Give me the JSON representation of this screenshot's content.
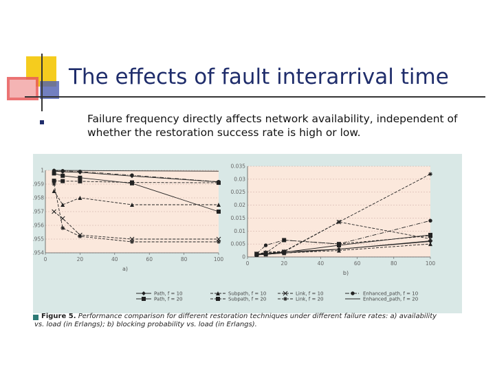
{
  "slide": {
    "title": "The effects of fault interarrival time",
    "bullet": "Failure frequency directly affects network availability, independent of whether the restoration success rate is high or low.",
    "caption_head": "Figure 5.",
    "caption_body": "Performance comparison for different restoration techniques under different failure rates: a) availability vs. load (in Erlangs); b) blocking probability vs. load (in Erlangs)."
  },
  "colors": {
    "title": "#1f2d6b",
    "deco_yellow": "#f5cc1e",
    "deco_red": "#e85a5a",
    "deco_blue": "#4f5fb0",
    "figure_bg": "#d9e8e6",
    "plot_bg": "#fbe8dc"
  },
  "legend": [
    {
      "label": "Path, f = 10",
      "marker": "diamond",
      "dash": "solid"
    },
    {
      "label": "Path, f = 20",
      "marker": "square",
      "dash": "solid"
    },
    {
      "label": "Subpath, f = 10",
      "marker": "triangle",
      "dash": "dashed"
    },
    {
      "label": "Subpath, f = 20",
      "marker": "square",
      "dash": "dashed"
    },
    {
      "label": "Link, f = 10",
      "marker": "x",
      "dash": "dashed"
    },
    {
      "label": "Link, f = 20",
      "marker": "star",
      "dash": "dashed"
    },
    {
      "label": "Enhanced_path, f = 10",
      "marker": "circle",
      "dash": "dashdot"
    },
    {
      "label": "Enhanced_path, f = 20",
      "marker": "none",
      "dash": "solid"
    }
  ],
  "chart_data": [
    {
      "type": "line",
      "label": "a)",
      "x_ticks": [
        0,
        20,
        40,
        60,
        80,
        100
      ],
      "y_ticks": [
        "0.954",
        "0.955",
        "0.956",
        "0.957",
        "0.958",
        "0.959",
        "1"
      ],
      "xlim": [
        0,
        100
      ],
      "ylim": [
        0.954,
        1
      ],
      "series": [
        {
          "name": "Path, f = 10",
          "marker": "diamond",
          "dash": "solid",
          "x": [
            5,
            10,
            20,
            50,
            100
          ],
          "y": [
            0.998,
            0.996,
            0.994,
            0.983,
            0.9655
          ]
        },
        {
          "name": "Path, f = 20",
          "marker": "square",
          "dash": "solid",
          "x": [
            5,
            10,
            20,
            50,
            100
          ],
          "y": [
            0.991,
            0.984,
            0.978,
            0.9615,
            0.957
          ]
        },
        {
          "name": "Subpath, f = 10",
          "marker": "triangle",
          "dash": "dashed",
          "x": [
            5,
            10,
            20,
            50,
            100
          ],
          "y": [
            0.9585,
            0.9575,
            0.958,
            0.9575,
            0.9575
          ]
        },
        {
          "name": "Subpath, f = 20",
          "marker": "square",
          "dash": "dashed",
          "x": [
            5,
            10,
            20,
            50,
            100
          ],
          "y": [
            0.969,
            0.968,
            0.9675,
            0.964,
            0.963
          ]
        },
        {
          "name": "Link, f = 10",
          "marker": "x",
          "dash": "dashed",
          "x": [
            5,
            10,
            20,
            50,
            100
          ],
          "y": [
            0.957,
            0.9565,
            0.9553,
            0.955,
            0.955
          ]
        },
        {
          "name": "Link, f = 20",
          "marker": "star",
          "dash": "dashed",
          "x": [
            5,
            10,
            20,
            50,
            100
          ],
          "y": [
            0.9595,
            0.9558,
            0.9552,
            0.9548,
            0.9548
          ]
        },
        {
          "name": "Enhanced_path, f = 10",
          "marker": "circle",
          "dash": "dashdot",
          "x": [
            5,
            10,
            20,
            50,
            100
          ],
          "y": [
            0.9995,
            0.9985,
            0.9965,
            0.9855,
            0.966
          ]
        },
        {
          "name": "Enhanced_path, f = 20",
          "marker": "none",
          "dash": "solid",
          "x": [
            5,
            10,
            20,
            50,
            100
          ],
          "y": [
            1.0,
            0.9997,
            0.9995,
            0.9985,
            0.9975
          ]
        }
      ]
    },
    {
      "type": "line",
      "label": "b)",
      "x_ticks": [
        0,
        20,
        40,
        60,
        80,
        100
      ],
      "y_ticks": [
        "0",
        "0.005",
        "0.01",
        "0.015",
        "0.02",
        "0.025",
        "0.03",
        "0.035"
      ],
      "xlim": [
        0,
        100
      ],
      "ylim": [
        0,
        0.035
      ],
      "series": [
        {
          "name": "Path, f = 10",
          "marker": "diamond",
          "dash": "solid",
          "x": [
            5,
            10,
            20,
            50,
            100
          ],
          "y": [
            0.0012,
            0.0012,
            0.002,
            0.003,
            0.006
          ]
        },
        {
          "name": "Path, f = 20",
          "marker": "square",
          "dash": "solid",
          "x": [
            5,
            10,
            20,
            50,
            100
          ],
          "y": [
            0.001,
            0.0012,
            0.0018,
            0.0045,
            0.0085
          ]
        },
        {
          "name": "Subpath, f = 10",
          "marker": "triangle",
          "dash": "dashed",
          "x": [
            5,
            10,
            20,
            50,
            100
          ],
          "y": [
            0.0008,
            0.001,
            0.0015,
            0.0025,
            0.005
          ]
        },
        {
          "name": "Subpath, f = 20",
          "marker": "square",
          "dash": "dashed",
          "x": [
            5,
            10,
            20,
            50,
            100
          ],
          "y": [
            0.0012,
            0.0015,
            0.0065,
            0.005,
            0.0082
          ]
        },
        {
          "name": "Link, f = 10",
          "marker": "x",
          "dash": "dashed",
          "x": [
            5,
            10,
            20,
            50,
            100
          ],
          "y": [
            0.0012,
            0.0015,
            0.002,
            0.0135,
            0.007
          ]
        },
        {
          "name": "Link, f = 20",
          "marker": "star",
          "dash": "dashed",
          "x": [
            5,
            10,
            20,
            50,
            100
          ],
          "y": [
            0.001,
            0.0018,
            0.0022,
            0.0135,
            0.032
          ]
        },
        {
          "name": "Enhanced_path, f = 10",
          "marker": "circle",
          "dash": "dashdot",
          "x": [
            5,
            10,
            20,
            50,
            100
          ],
          "y": [
            0.0012,
            0.0045,
            0.0065,
            0.005,
            0.014
          ]
        },
        {
          "name": "Enhanced_path, f = 20",
          "marker": "none",
          "dash": "solid",
          "x": [
            5,
            10,
            20,
            50,
            100
          ],
          "y": [
            0.0008,
            0.001,
            0.0015,
            0.003,
            0.0062
          ]
        }
      ]
    }
  ]
}
